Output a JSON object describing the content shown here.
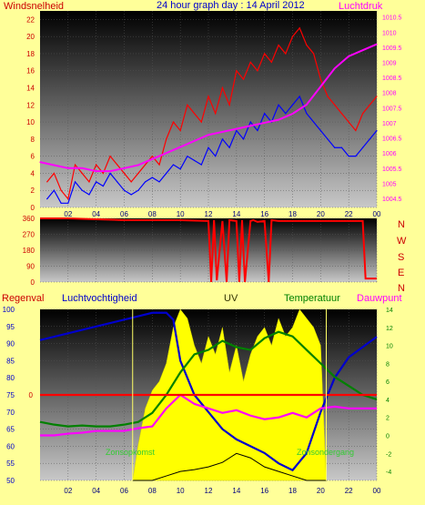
{
  "header": {
    "left_label": "Windsnelheid",
    "title": "24 hour graph day : 14 April 2012",
    "right_label": "Luchtdruk"
  },
  "wind_dir_labels": [
    "N",
    "W",
    "S",
    "E",
    "N"
  ],
  "bottom_header": {
    "rain": "Regenval",
    "humidity": "Luchtvochtigheid",
    "uv": "UV",
    "temperature": "Temperatuur",
    "dewpoint": "Dauwpunt"
  },
  "annotations": {
    "sunrise": "Zonsopkomst",
    "sunset": "Zonsondergang"
  },
  "colors": {
    "background": "#ffff99",
    "wind_gust": "#ff0000",
    "wind_avg": "#0000ff",
    "pressure": "#ff00ff",
    "wind_dir": "#ff0000",
    "humidity": "#0000cc",
    "temperature": "#008000",
    "dewpoint": "#ff00ff",
    "uv": "#ffff00",
    "solar": "#000000",
    "rain_line": "#ff0000"
  },
  "chart_data": [
    {
      "type": "line",
      "title": "24 hour graph day : 14 April 2012",
      "xlabel": "",
      "ylabel_left": "Windsnelheid",
      "ylabel_right": "Luchtdruk",
      "x_ticks": [
        "02",
        "04",
        "06",
        "08",
        "10",
        "12",
        "14",
        "16",
        "18",
        "20",
        "22",
        "00"
      ],
      "x_range_hours": [
        0,
        24
      ],
      "y_left_ticks": [
        0,
        2,
        4,
        6,
        8,
        10,
        12,
        14,
        16,
        18,
        20,
        22
      ],
      "y_left_range": [
        0,
        23
      ],
      "y_right_ticks": [
        1004.5,
        1005,
        1005.5,
        1006,
        1006.5,
        1007,
        1007.5,
        1008,
        1008.5,
        1009,
        1009.5,
        1010,
        1010.5
      ],
      "y_right_range": [
        1004.2,
        1010.7
      ],
      "series": [
        {
          "role": "gust",
          "x": [
            0.5,
            1,
            1.5,
            2,
            2.5,
            3,
            3.5,
            4,
            4.5,
            5,
            5.5,
            6,
            6.5,
            7,
            7.5,
            8,
            8.5,
            9,
            9.5,
            10,
            10.5,
            11,
            11.5,
            12,
            12.5,
            13,
            13.5,
            14,
            14.5,
            15,
            15.5,
            16,
            16.5,
            17,
            17.5,
            18,
            18.5,
            19,
            19.5,
            20,
            20.5,
            21,
            21.5,
            22,
            22.5,
            23,
            23.5,
            24
          ],
          "values": [
            3,
            4,
            2,
            1,
            5,
            4,
            3,
            5,
            4,
            6,
            5,
            4,
            3,
            4,
            5,
            6,
            5,
            8,
            10,
            9,
            12,
            11,
            10,
            13,
            11,
            14,
            12,
            16,
            15,
            17,
            16,
            18,
            17,
            19,
            18,
            20,
            21,
            19,
            18,
            15,
            13,
            12,
            11,
            10,
            9,
            11,
            12,
            13
          ]
        },
        {
          "role": "average",
          "x": [
            0.5,
            1,
            1.5,
            2,
            2.5,
            3,
            3.5,
            4,
            4.5,
            5,
            5.5,
            6,
            6.5,
            7,
            7.5,
            8,
            8.5,
            9,
            9.5,
            10,
            10.5,
            11,
            11.5,
            12,
            12.5,
            13,
            13.5,
            14,
            14.5,
            15,
            15.5,
            16,
            16.5,
            17,
            17.5,
            18,
            18.5,
            19,
            19.5,
            20,
            20.5,
            21,
            21.5,
            22,
            22.5,
            23,
            23.5,
            24
          ],
          "values": [
            1,
            2,
            0.5,
            0.5,
            3,
            2,
            1.5,
            3,
            2.5,
            4,
            3,
            2,
            1.5,
            2,
            3,
            3.5,
            3,
            4,
            5,
            4.5,
            6,
            5.5,
            5,
            7,
            6,
            8,
            7,
            9,
            8,
            10,
            9,
            11,
            10,
            12,
            11,
            12,
            13,
            11,
            10,
            9,
            8,
            7,
            7,
            6,
            6,
            7,
            8,
            9
          ]
        },
        {
          "role": "pressure",
          "axis": "right",
          "x": [
            0,
            1,
            2,
            3,
            4,
            5,
            6,
            7,
            8,
            9,
            10,
            11,
            12,
            13,
            14,
            15,
            16,
            17,
            18,
            19,
            20,
            21,
            22,
            23,
            24
          ],
          "values": [
            1005.7,
            1005.6,
            1005.5,
            1005.5,
            1005.4,
            1005.4,
            1005.5,
            1005.6,
            1005.8,
            1006.0,
            1006.2,
            1006.4,
            1006.6,
            1006.7,
            1006.8,
            1006.9,
            1007.0,
            1007.1,
            1007.3,
            1007.6,
            1008.2,
            1008.8,
            1009.2,
            1009.4,
            1009.6
          ]
        }
      ]
    },
    {
      "type": "line",
      "title": "",
      "y_ticks": [
        0,
        90,
        180,
        270,
        360
      ],
      "y_range": [
        0,
        360
      ],
      "x_range_hours": [
        0,
        24
      ],
      "series": [
        {
          "role": "wind_direction",
          "x": [
            0,
            2,
            4,
            6,
            8,
            10,
            12,
            12.2,
            12.4,
            12.6,
            13,
            13.3,
            13.5,
            14,
            14.2,
            14.4,
            14.6,
            15,
            15.2,
            15.5,
            16,
            16.3,
            16.5,
            17,
            18,
            19,
            20,
            21,
            22,
            23,
            23.2,
            24
          ],
          "values": [
            360,
            360,
            355,
            350,
            350,
            350,
            345,
            0,
            350,
            10,
            345,
            0,
            350,
            345,
            0,
            350,
            0,
            345,
            350,
            340,
            345,
            0,
            350,
            345,
            345,
            345,
            345,
            345,
            345,
            345,
            20,
            20
          ]
        }
      ]
    },
    {
      "type": "line",
      "title": "",
      "labels": [
        "Regenval",
        "Luchtvochtigheid",
        "UV",
        "Temperatuur",
        "Dauwpunt"
      ],
      "y_left_ticks": [
        50,
        55,
        60,
        65,
        70,
        75,
        80,
        85,
        90,
        95,
        100
      ],
      "y_left_range": [
        50,
        100
      ],
      "y_right_ticks": [
        -4,
        -2,
        0,
        2,
        4,
        6,
        8,
        10,
        12,
        14
      ],
      "y_right_range": [
        -5,
        14
      ],
      "rain_axis_ticks": [
        0
      ],
      "x_ticks": [
        "02",
        "04",
        "06",
        "08",
        "10",
        "12",
        "14",
        "16",
        "18",
        "20",
        "22",
        "00"
      ],
      "x_range_hours": [
        0,
        24
      ],
      "sunrise_hour": 6.6,
      "sunset_hour": 20.4,
      "series": [
        {
          "role": "humidity",
          "x": [
            0,
            1,
            2,
            3,
            4,
            5,
            6,
            7,
            8,
            9,
            9.5,
            10,
            11,
            12,
            13,
            14,
            15,
            16,
            17,
            18,
            19,
            20,
            21,
            22,
            23,
            24
          ],
          "values": [
            91,
            92,
            93,
            94,
            95,
            96,
            97,
            98,
            99,
            99,
            97,
            85,
            75,
            70,
            65,
            62,
            60,
            58,
            55,
            53,
            58,
            70,
            80,
            86,
            89,
            92
          ]
        },
        {
          "role": "temperature",
          "axis": "right",
          "x": [
            0,
            1,
            2,
            3,
            4,
            5,
            6,
            7,
            8,
            9,
            10,
            11,
            12,
            13,
            14,
            15,
            16,
            17,
            18,
            19,
            20,
            21,
            22,
            23,
            24
          ],
          "values": [
            1.5,
            1.2,
            1.0,
            1.1,
            1.0,
            1.0,
            1.2,
            1.5,
            2.5,
            4.5,
            7.0,
            9.0,
            9.5,
            10.5,
            9.8,
            9.5,
            10.8,
            11.5,
            11.0,
            9.5,
            8.0,
            6.5,
            5.5,
            4.5,
            4.0
          ]
        },
        {
          "role": "dewpoint",
          "axis": "right",
          "x": [
            0,
            1,
            2,
            3,
            4,
            5,
            6,
            7,
            8,
            9,
            10,
            11,
            12,
            13,
            14,
            15,
            16,
            17,
            18,
            19,
            20,
            21,
            22,
            23,
            24
          ],
          "values": [
            0,
            0,
            0.2,
            0.3,
            0.5,
            0.5,
            0.5,
            0.8,
            1.0,
            3.0,
            4.5,
            3.5,
            3.0,
            2.5,
            2.8,
            2.2,
            1.8,
            2.0,
            2.5,
            2.0,
            3.0,
            3.2,
            3.0,
            3.0,
            3.0
          ]
        },
        {
          "role": "uv_area",
          "axis": "right",
          "x": [
            6.6,
            7,
            7.5,
            8,
            8.5,
            9,
            9.5,
            10,
            10.5,
            11,
            11.5,
            12,
            12.5,
            13,
            13.5,
            14,
            14.5,
            15,
            15.5,
            16,
            16.5,
            17,
            17.5,
            18,
            18.5,
            19,
            19.5,
            20,
            20.4
          ],
          "values": [
            -5,
            -1,
            3,
            5,
            6,
            8,
            12,
            14,
            13,
            10,
            8,
            11,
            9,
            12,
            7,
            10,
            6,
            9,
            11,
            12,
            10,
            13,
            11,
            12,
            14,
            13,
            12,
            10,
            -5
          ]
        },
        {
          "role": "solar",
          "axis": "right",
          "x": [
            6.6,
            7,
            8,
            9,
            10,
            11,
            12,
            13,
            14,
            15,
            16,
            17,
            18,
            19,
            20,
            20.4
          ],
          "values": [
            -5,
            -5,
            -5,
            -4.5,
            -4,
            -3.8,
            -3.5,
            -3,
            -2,
            -2.5,
            -3.5,
            -4,
            -4.5,
            -5,
            -5,
            -5
          ]
        },
        {
          "role": "rain",
          "x": [
            0,
            24
          ],
          "values": [
            0,
            0
          ]
        }
      ]
    }
  ]
}
